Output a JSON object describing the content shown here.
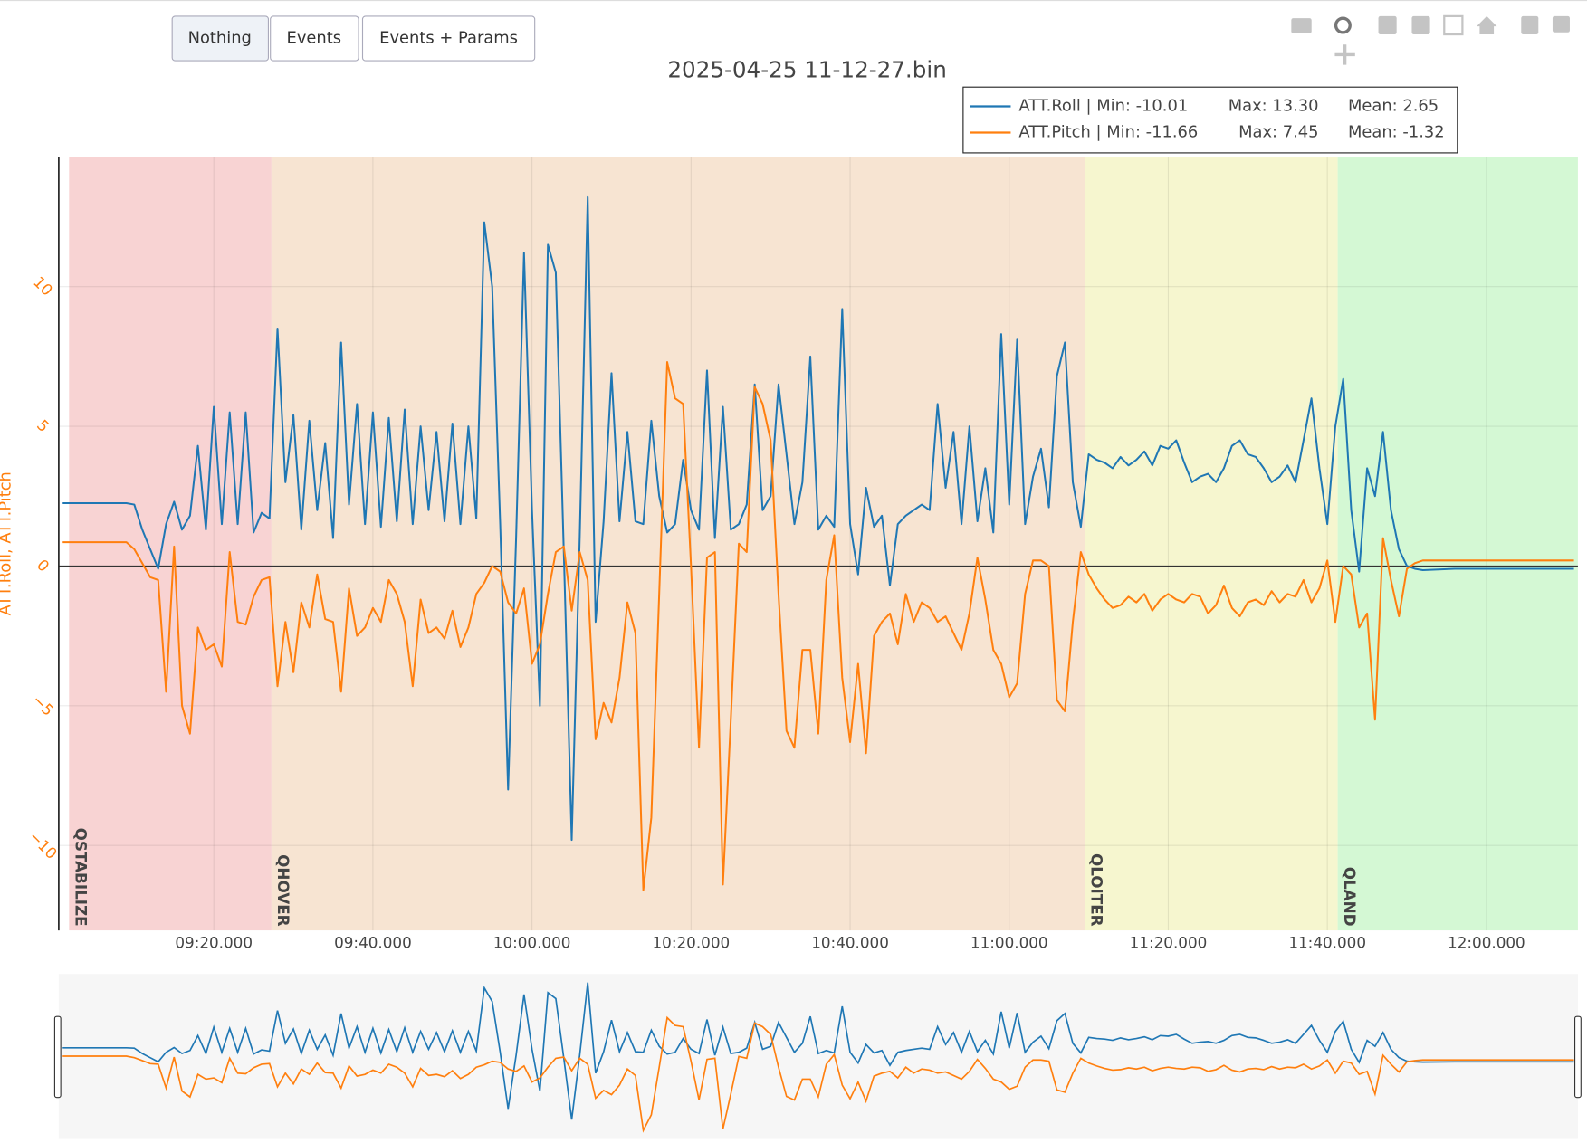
{
  "buttons": [
    "Nothing",
    "Events",
    "Events + Params"
  ],
  "chart_data": {
    "type": "line",
    "title": "2025-04-25 11-12-27.bin",
    "y_label": "ATT.Roll, ATT.Pitch",
    "xlim": [
      540.5,
      731.5
    ],
    "ylim": [
      -13.04,
      14.64
    ],
    "xticks": [
      {
        "value": 560,
        "label": "09:20.000"
      },
      {
        "value": 580,
        "label": "09:40.000"
      },
      {
        "value": 600,
        "label": "10:00.000"
      },
      {
        "value": 620,
        "label": "10:20.000"
      },
      {
        "value": 640,
        "label": "10:40.000"
      },
      {
        "value": 660,
        "label": "11:00.000"
      },
      {
        "value": 680,
        "label": "11:20.000"
      },
      {
        "value": 700,
        "label": "11:40.000"
      },
      {
        "value": 720,
        "label": "12:00.000"
      }
    ],
    "yticks": [
      {
        "value": -10,
        "label": "−10"
      },
      {
        "value": -5,
        "label": "−5"
      },
      0,
      5,
      10
    ],
    "grid": true,
    "modes": [
      {
        "name": "QSTABILIZE",
        "start": 541.8,
        "color": "#f8d3d3",
        "label_color": "#c00000"
      },
      {
        "name": "QHOVER",
        "start": 567.25,
        "color": "#f7e4d2",
        "label_color": "#b35c00"
      },
      {
        "name": "QLOITER",
        "start": 669.5,
        "color": "#f6f6cf",
        "label_color": "#c8c800"
      },
      {
        "name": "QLAND",
        "start": 701.3,
        "color": "#d4f8d4",
        "label_color": "#00c000"
      }
    ],
    "x": [
      541,
      545,
      549,
      550,
      551,
      552,
      553,
      554,
      555,
      556,
      557,
      558,
      559,
      560,
      561,
      562,
      563,
      564,
      565,
      566,
      567,
      568,
      569,
      570,
      571,
      572,
      573,
      574,
      575,
      576,
      577,
      578,
      579,
      580,
      581,
      582,
      583,
      584,
      585,
      586,
      587,
      588,
      589,
      590,
      591,
      592,
      593,
      594,
      595,
      596,
      597,
      598,
      599,
      600,
      601,
      602,
      603,
      604,
      605,
      606,
      607,
      608,
      609,
      610,
      611,
      612,
      613,
      614,
      615,
      616,
      617,
      618,
      619,
      620,
      621,
      622,
      623,
      624,
      625,
      626,
      627,
      628,
      629,
      630,
      631,
      632,
      633,
      634,
      635,
      636,
      637,
      638,
      639,
      640,
      641,
      642,
      643,
      644,
      645,
      646,
      647,
      648,
      649,
      650,
      651,
      652,
      653,
      654,
      655,
      656,
      657,
      658,
      659,
      660,
      661,
      662,
      663,
      664,
      665,
      666,
      667,
      668,
      669,
      670,
      671,
      672,
      673,
      674,
      675,
      676,
      677,
      678,
      679,
      680,
      681,
      682,
      683,
      684,
      685,
      686,
      687,
      688,
      689,
      690,
      691,
      692,
      693,
      694,
      695,
      696,
      697,
      698,
      699,
      700,
      701,
      702,
      703,
      704,
      705,
      706,
      707,
      708,
      709,
      710,
      711,
      712,
      716,
      720,
      724,
      728,
      731
    ],
    "series": [
      {
        "name": "ATT.Roll | Min: -10.01",
        "stats": [
          "Max: 13.30",
          "Mean: 2.65"
        ],
        "color": "#1f77b4",
        "values": [
          2.25,
          2.25,
          2.25,
          2.2,
          1.3,
          0.6,
          -0.1,
          1.5,
          2.3,
          1.3,
          1.8,
          4.3,
          1.3,
          5.7,
          1.5,
          5.5,
          1.5,
          5.5,
          1.2,
          1.9,
          1.7,
          8.5,
          3.0,
          5.4,
          1.3,
          5.2,
          2.0,
          4.4,
          1.0,
          8.0,
          2.2,
          5.8,
          1.5,
          5.5,
          1.4,
          5.3,
          1.6,
          5.6,
          1.5,
          5.0,
          2.0,
          4.8,
          1.6,
          5.1,
          1.5,
          5.0,
          1.7,
          12.3,
          10.0,
          1.5,
          -8.0,
          1.0,
          11.2,
          2.0,
          -5.0,
          11.5,
          10.5,
          0.5,
          -9.8,
          1.0,
          13.2,
          -2.0,
          1.6,
          6.9,
          1.6,
          4.8,
          1.6,
          1.5,
          5.2,
          2.5,
          1.2,
          1.5,
          3.8,
          2.0,
          1.3,
          7.0,
          1.0,
          5.7,
          1.3,
          1.5,
          2.2,
          6.5,
          2.0,
          2.5,
          6.5,
          4.0,
          1.5,
          3.0,
          7.5,
          1.3,
          1.8,
          1.4,
          9.2,
          1.5,
          -0.3,
          2.8,
          1.4,
          1.8,
          -0.7,
          1.5,
          1.8,
          2.0,
          2.2,
          2.0,
          5.8,
          2.8,
          4.8,
          1.5,
          5.0,
          1.6,
          3.5,
          1.2,
          8.3,
          2.2,
          8.1,
          1.5,
          3.2,
          4.2,
          2.1,
          6.8,
          8.0,
          3.0,
          1.4,
          4.0,
          3.8,
          3.7,
          3.5,
          3.9,
          3.6,
          3.8,
          4.1,
          3.6,
          4.3,
          4.2,
          4.5,
          3.7,
          3.0,
          3.2,
          3.3,
          3.0,
          3.5,
          4.3,
          4.5,
          4.0,
          3.9,
          3.5,
          3.0,
          3.2,
          3.6,
          3.0,
          4.5,
          6.0,
          3.5,
          1.5,
          5.0,
          6.7,
          2.0,
          -0.2,
          3.5,
          2.5,
          4.8,
          2.0,
          0.6,
          0.0,
          -0.1,
          -0.15,
          -0.1,
          -0.1,
          -0.1,
          -0.1,
          -0.1
        ]
      },
      {
        "name": "ATT.Pitch | Min: -11.66",
        "stats": [
          "Max: 7.45",
          "Mean: -1.32"
        ],
        "color": "#ff7f0e",
        "values": [
          0.85,
          0.85,
          0.85,
          0.6,
          0.1,
          -0.4,
          -0.5,
          -4.5,
          0.7,
          -5.0,
          -6.0,
          -2.2,
          -3.0,
          -2.8,
          -3.6,
          0.5,
          -2.0,
          -2.1,
          -1.1,
          -0.5,
          -0.4,
          -4.3,
          -2.0,
          -3.8,
          -1.3,
          -2.2,
          -0.3,
          -1.9,
          -2.0,
          -4.5,
          -0.8,
          -2.5,
          -2.2,
          -1.5,
          -2.0,
          -0.5,
          -1.0,
          -2.0,
          -4.3,
          -1.2,
          -2.4,
          -2.2,
          -2.6,
          -1.6,
          -2.9,
          -2.2,
          -1.0,
          -0.6,
          0.0,
          -0.2,
          -1.3,
          -1.7,
          -0.8,
          -3.5,
          -2.8,
          -1.0,
          0.5,
          0.7,
          -1.6,
          0.5,
          -0.5,
          -6.2,
          -4.9,
          -5.6,
          -4.0,
          -1.3,
          -2.4,
          -11.6,
          -9.0,
          -1.0,
          7.3,
          6.0,
          5.8,
          0.0,
          -6.5,
          0.3,
          0.5,
          -11.4,
          -5.5,
          0.8,
          0.5,
          6.4,
          5.8,
          4.5,
          -1.0,
          -5.9,
          -6.5,
          -3.0,
          -3.0,
          -6.0,
          -0.5,
          1.1,
          -4.0,
          -6.3,
          -3.5,
          -6.7,
          -2.5,
          -2.0,
          -1.7,
          -2.8,
          -1.0,
          -2.0,
          -1.3,
          -1.5,
          -2.0,
          -1.8,
          -2.4,
          -3.0,
          -1.7,
          0.3,
          -1.2,
          -3.0,
          -3.5,
          -4.7,
          -4.2,
          -1.0,
          0.2,
          0.2,
          0.0,
          -4.8,
          -5.2,
          -2.0,
          0.5,
          -0.3,
          -0.8,
          -1.2,
          -1.5,
          -1.4,
          -1.1,
          -1.3,
          -1.0,
          -1.6,
          -1.2,
          -1.0,
          -1.2,
          -1.3,
          -1.0,
          -1.1,
          -1.7,
          -1.4,
          -0.7,
          -1.5,
          -1.8,
          -1.3,
          -1.2,
          -1.4,
          -0.9,
          -1.3,
          -1.0,
          -1.1,
          -0.5,
          -1.3,
          -0.8,
          0.2,
          -2.0,
          0.0,
          -0.3,
          -2.2,
          -1.7,
          -5.5,
          1.0,
          -0.5,
          -1.8,
          -0.1,
          0.1,
          0.2,
          0.2,
          0.2,
          0.2,
          0.2,
          0.2
        ]
      }
    ]
  }
}
